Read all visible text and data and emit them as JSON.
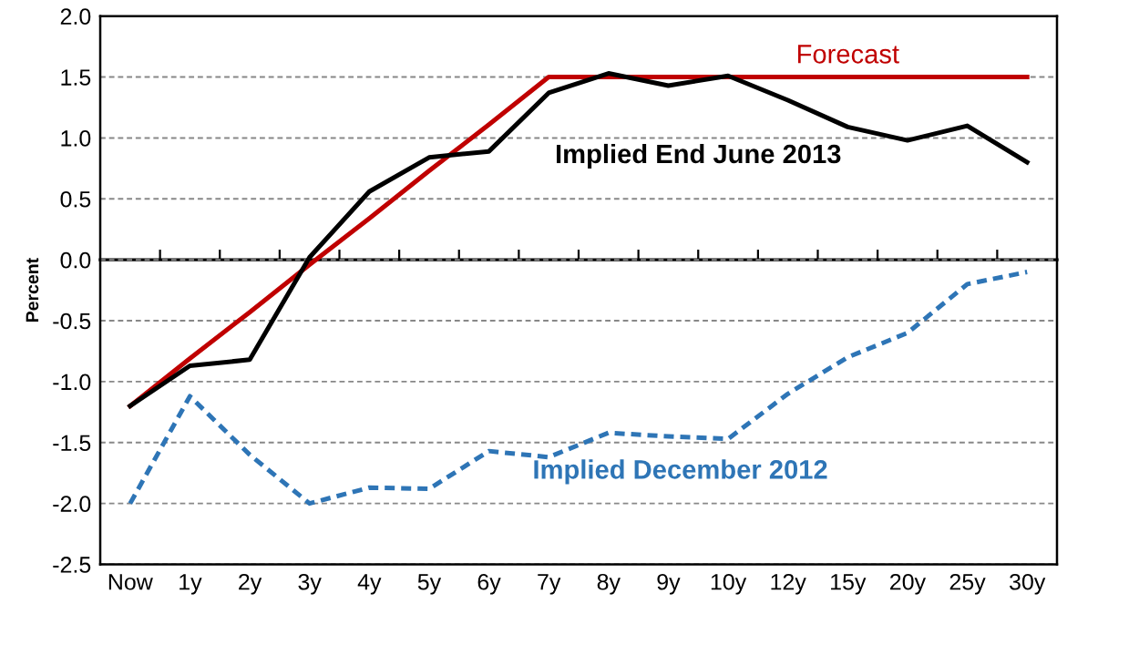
{
  "chart_data": {
    "type": "line",
    "ylabel": "Percent",
    "categories": [
      "Now",
      "1y",
      "2y",
      "3y",
      "4y",
      "5y",
      "6y",
      "7y",
      "8y",
      "9y",
      "10y",
      "12y",
      "15y",
      "20y",
      "25y",
      "30y"
    ],
    "series": [
      {
        "name": "Forecast",
        "color": "#c00000",
        "line_style": "solid",
        "values": [
          -1.2,
          -0.81,
          -0.43,
          -0.04,
          0.34,
          0.73,
          1.11,
          1.5,
          1.5,
          1.5,
          1.5,
          1.5,
          1.5,
          1.5,
          1.5,
          1.5
        ]
      },
      {
        "name": "Implied End June 2013",
        "color": "#000000",
        "line_style": "solid",
        "values": [
          -1.2,
          -0.87,
          -0.82,
          0.02,
          0.56,
          0.84,
          0.89,
          1.37,
          1.53,
          1.43,
          1.51,
          1.31,
          1.09,
          0.98,
          1.1,
          0.8
        ]
      },
      {
        "name": "Implied December 2012",
        "color": "#2e75b6",
        "line_style": "dashed",
        "values": [
          -2.0,
          -1.12,
          -1.6,
          -2.0,
          -1.87,
          -1.88,
          -1.57,
          -1.62,
          -1.42,
          -1.45,
          -1.47,
          -1.1,
          -0.8,
          -0.6,
          -0.2,
          -0.1
        ]
      }
    ],
    "ylim": [
      -2.5,
      2.0
    ],
    "yticks": [
      {
        "value": -2.5,
        "label": "-2.5"
      },
      {
        "value": -2.0,
        "label": "-2.0"
      },
      {
        "value": -1.5,
        "label": "-1.5"
      },
      {
        "value": -1.0,
        "label": "-1.0"
      },
      {
        "value": -0.5,
        "label": "-0.5"
      },
      {
        "value": 0.0,
        "label": "0.0"
      },
      {
        "value": 0.5,
        "label": "0.5"
      },
      {
        "value": 1.0,
        "label": "1.0"
      },
      {
        "value": 1.5,
        "label": "1.5"
      },
      {
        "value": 2.0,
        "label": "2.0"
      }
    ],
    "grid": "y",
    "marker": "none",
    "legend": false
  }
}
